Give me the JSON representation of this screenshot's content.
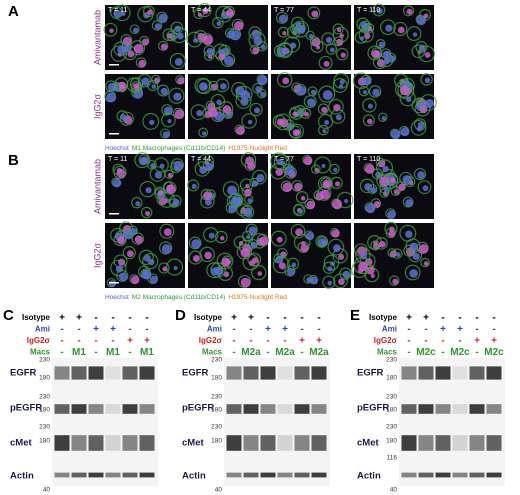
{
  "panel_a": {
    "label": "A",
    "times": [
      "T = 11",
      "T = 44",
      "T = 77",
      "T = 110"
    ],
    "rows": [
      "Amivantamab",
      "IgG2σ"
    ],
    "caption": {
      "hoechst": "Hoechst",
      "macro": "M1 Macrophages (Cd11b/CD14)",
      "tumor": "H1975-Nuclight Red"
    }
  },
  "panel_b": {
    "label": "B",
    "times": [
      "T = 11",
      "T = 44",
      "T = 77",
      "T = 110"
    ],
    "rows": [
      "Amivantamab",
      "IgG2σ"
    ],
    "caption": {
      "hoechst": "Hoechst",
      "macro": "M2 Macrophages (Cd11b/CD14)",
      "tumor": "H1975-Nuclight Red"
    }
  },
  "blots": [
    {
      "label": "C",
      "conditions": [
        {
          "name": "Isotype",
          "cells": [
            "+",
            "+",
            "-",
            "-",
            "-",
            "-"
          ]
        },
        {
          "name": "Ami",
          "cells": [
            "-",
            "-",
            "+",
            "+",
            "-",
            "-"
          ]
        },
        {
          "name": "IgG2σ",
          "cells": [
            "-",
            "-",
            "-",
            "-",
            "+",
            "+"
          ]
        },
        {
          "name": "Macs",
          "cells": [
            "-",
            "M1",
            "-",
            "M1",
            "-",
            "M1"
          ]
        }
      ],
      "markers": [
        {
          "name": "EGFR",
          "mw": [
            "230",
            "180"
          ]
        },
        {
          "name": "pEGFR",
          "mw": [
            "230",
            "180"
          ]
        },
        {
          "name": "cMet",
          "mw": [
            "230",
            "180"
          ]
        },
        {
          "name": "Actin",
          "mw": [
            "40"
          ]
        }
      ]
    },
    {
      "label": "D",
      "conditions": [
        {
          "name": "Isotype",
          "cells": [
            "+",
            "+",
            "-",
            "-",
            "-",
            "-"
          ]
        },
        {
          "name": "Ami",
          "cells": [
            "-",
            "-",
            "+",
            "+",
            "-",
            "-"
          ]
        },
        {
          "name": "IgG2σ",
          "cells": [
            "-",
            "-",
            "-",
            "-",
            "+",
            "+"
          ]
        },
        {
          "name": "Macs",
          "cells": [
            "-",
            "M2a",
            "-",
            "M2a",
            "-",
            "M2a"
          ]
        }
      ],
      "markers": [
        {
          "name": "EGFR",
          "mw": [
            "230",
            "180"
          ]
        },
        {
          "name": "pEGFR",
          "mw": [
            "230",
            "180"
          ]
        },
        {
          "name": "cMet",
          "mw": [
            "230",
            "180"
          ]
        },
        {
          "name": "Actin",
          "mw": [
            "40"
          ]
        }
      ]
    },
    {
      "label": "E",
      "conditions": [
        {
          "name": "Isotype",
          "cells": [
            "+",
            "+",
            "-",
            "-",
            "-",
            "-"
          ]
        },
        {
          "name": "Ami",
          "cells": [
            "-",
            "-",
            "+",
            "+",
            "-",
            "-"
          ]
        },
        {
          "name": "IgG2σ",
          "cells": [
            "-",
            "-",
            "-",
            "-",
            "+",
            "+"
          ]
        },
        {
          "name": "Macs",
          "cells": [
            "-",
            "M2c",
            "-",
            "M2c",
            "-",
            "M2c"
          ]
        }
      ],
      "markers": [
        {
          "name": "EGFR",
          "mw": [
            "230",
            "180"
          ]
        },
        {
          "name": "pEGFR",
          "mw": [
            "230",
            "180"
          ]
        },
        {
          "name": "cMet",
          "mw": [
            "230",
            "180",
            "116"
          ]
        },
        {
          "name": "Actin",
          "mw": [
            "40"
          ]
        }
      ]
    }
  ]
}
